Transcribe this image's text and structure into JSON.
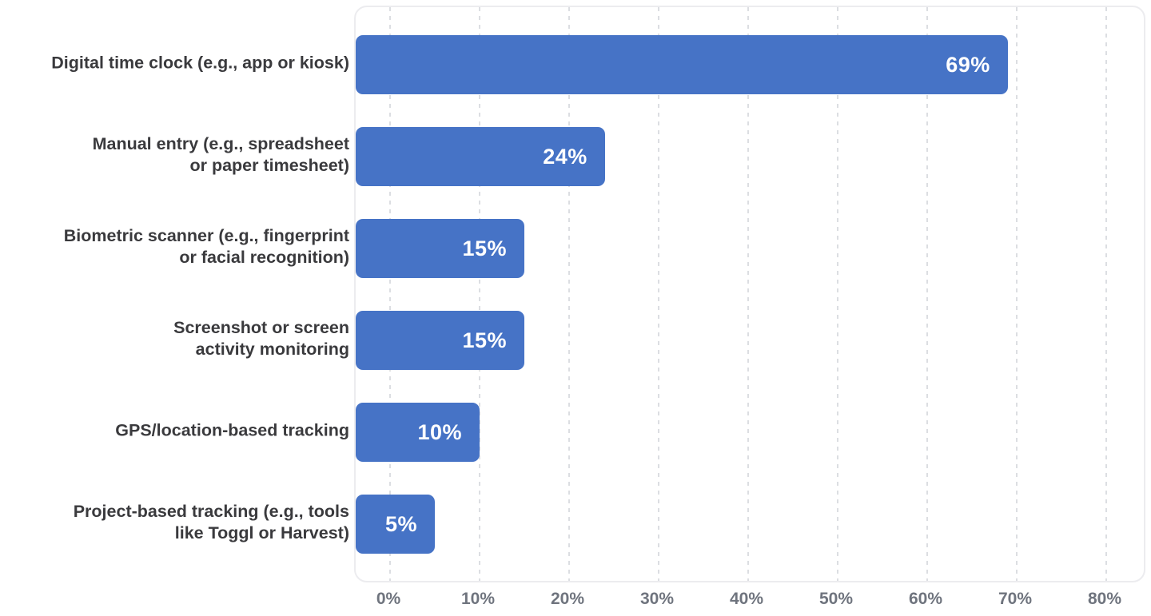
{
  "chart_data": {
    "type": "bar",
    "orientation": "horizontal",
    "title": "",
    "xlabel": "",
    "ylabel": "",
    "xlim": [
      0,
      80
    ],
    "grid": "vertical-dashed",
    "legend": null,
    "x_axis": {
      "min": 0,
      "max": 80,
      "step": 10,
      "ticks": [
        "0%",
        "10%",
        "20%",
        "30%",
        "40%",
        "50%",
        "60%",
        "70%",
        "80%"
      ]
    },
    "categories": [
      "Digital time clock (e.g., app or kiosk)",
      "Manual entry (e.g., spreadsheet or paper timesheet)",
      "Biometric scanner (e.g., fingerprint or facial recognition)",
      "Screenshot or screen activity monitoring",
      "GPS/location-based tracking",
      "Project-based tracking (e.g., tools like Toggl or Harvest)"
    ],
    "values": [
      69,
      24,
      15,
      15,
      10,
      5
    ],
    "bars": [
      {
        "category": "Digital time clock (e.g., app or kiosk)",
        "lines": [
          "Digital time clock (e.g., app or kiosk)"
        ],
        "value": 69,
        "label": "69%"
      },
      {
        "category": "Manual entry (e.g., spreadsheet or paper timesheet)",
        "lines": [
          "Manual entry (e.g., spreadsheet",
          "or paper timesheet)"
        ],
        "value": 24,
        "label": "24%"
      },
      {
        "category": "Biometric scanner (e.g., fingerprint or facial recognition)",
        "lines": [
          "Biometric scanner (e.g., fingerprint",
          "or facial recognition)"
        ],
        "value": 15,
        "label": "15%"
      },
      {
        "category": "Screenshot or screen activity monitoring",
        "lines": [
          "Screenshot or screen",
          "activity monitoring"
        ],
        "value": 15,
        "label": "15%"
      },
      {
        "category": "GPS/location-based tracking",
        "lines": [
          "GPS/location-based tracking"
        ],
        "value": 10,
        "label": "10%"
      },
      {
        "category": "Project-based tracking (e.g., tools like Toggl or Harvest)",
        "lines": [
          "Project-based tracking (e.g., tools",
          "like Toggl or Harvest)"
        ],
        "value": 5,
        "label": "5%"
      }
    ],
    "colors": {
      "bar": "#4673c6",
      "value_label": "#ffffff",
      "category_label": "#3a3a3d",
      "tick_label": "#6f747e",
      "gridline": "#dcdee2",
      "plot_border": "#ececef",
      "background": "#ffffff"
    }
  }
}
